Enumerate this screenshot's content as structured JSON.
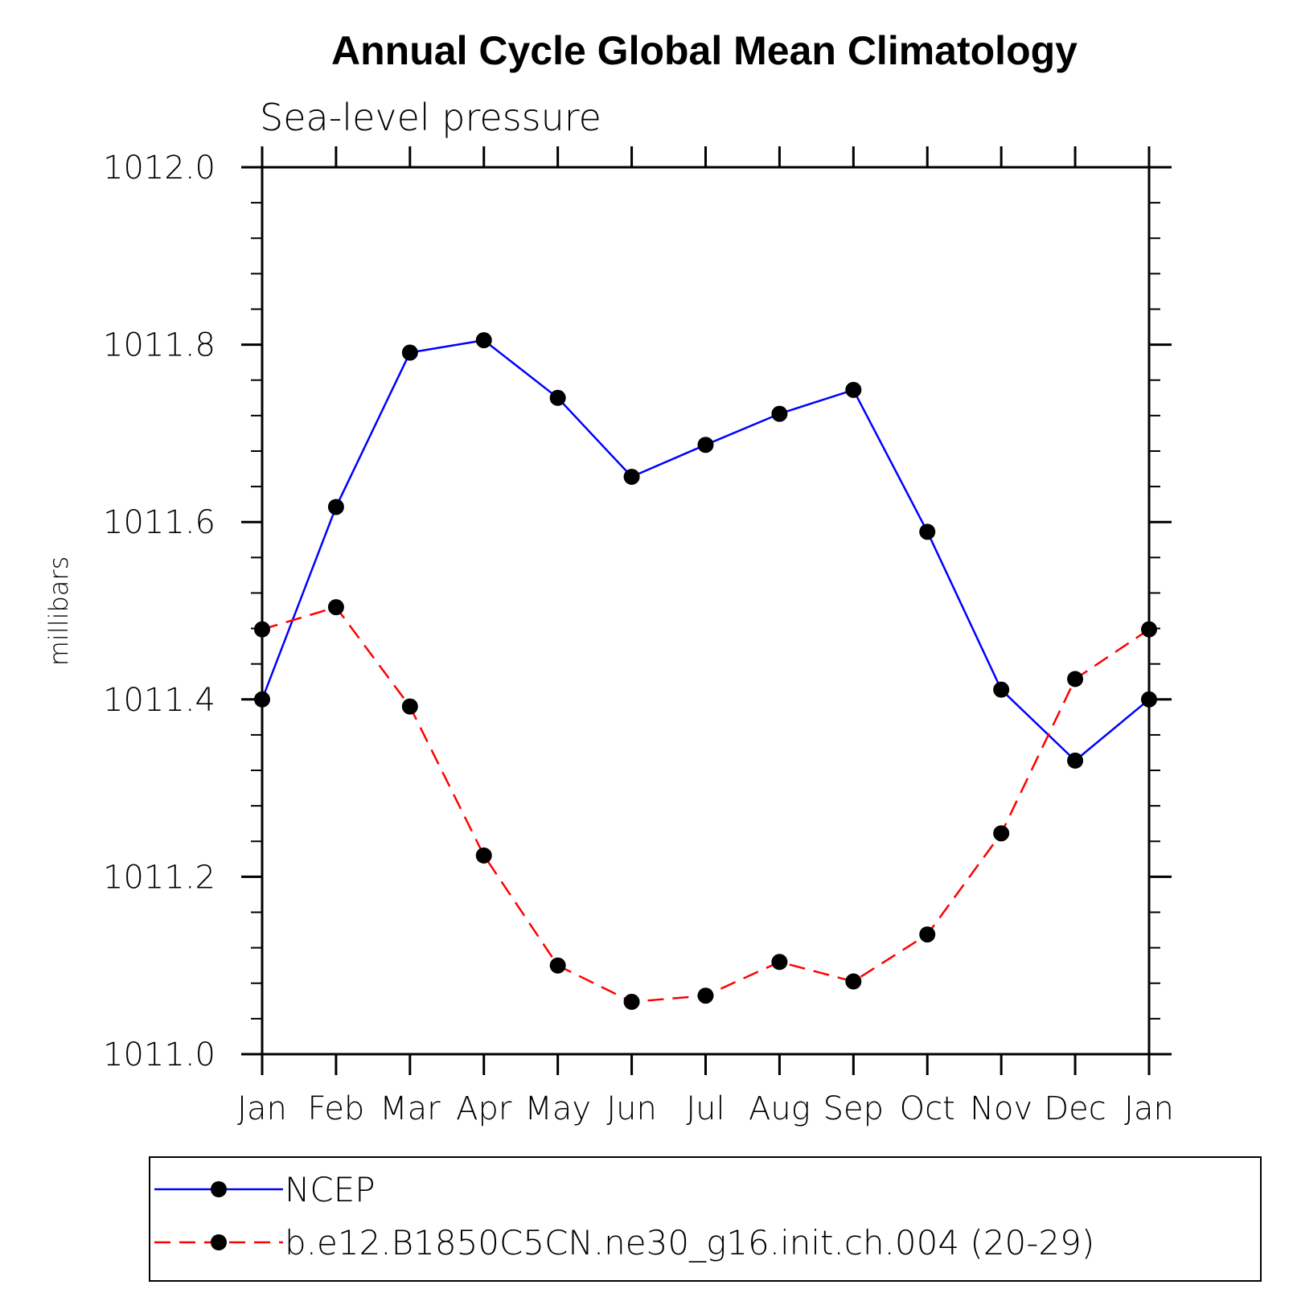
{
  "chart_data": {
    "type": "line",
    "title": "Annual Cycle Global Mean Climatology",
    "subtitle": "Sea-level pressure",
    "xlabel": "",
    "ylabel": "millibars",
    "categories": [
      "Jan",
      "Feb",
      "Mar",
      "Apr",
      "May",
      "Jun",
      "Jul",
      "Aug",
      "Sep",
      "Oct",
      "Nov",
      "Dec",
      "Jan"
    ],
    "ylim": [
      1011.0,
      1012.0
    ],
    "yticks": [
      "1011.0",
      "1011.2",
      "1011.4",
      "1011.6",
      "1011.8",
      "1012.0"
    ],
    "ytick_values": [
      1011.0,
      1011.2,
      1011.4,
      1011.6,
      1011.8,
      1012.0
    ],
    "grid": false,
    "legend_position": "bottom",
    "series": [
      {
        "name": "NCEP",
        "color": "#0000ff",
        "dash": "solid",
        "values": [
          1011.4,
          1011.617,
          1011.791,
          1011.805,
          1011.74,
          1011.651,
          1011.687,
          1011.722,
          1011.749,
          1011.589,
          1011.411,
          1011.331,
          1011.4
        ]
      },
      {
        "name": "b.e12.B1850C5CN.ne30_g16.init.ch.004 (20-29)",
        "color": "#ff0000",
        "dash": "dashed",
        "values": [
          1011.479,
          1011.504,
          1011.392,
          1011.224,
          1011.1,
          1011.059,
          1011.066,
          1011.104,
          1011.082,
          1011.135,
          1011.249,
          1011.423,
          1011.479
        ]
      }
    ]
  }
}
